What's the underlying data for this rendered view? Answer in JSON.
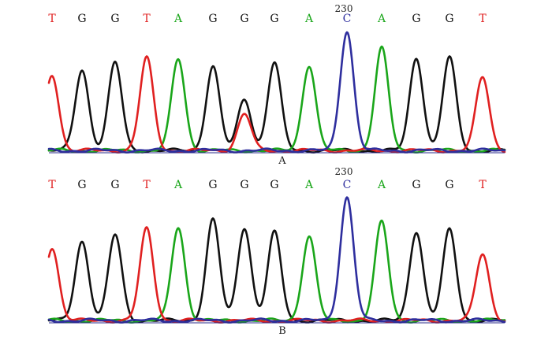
{
  "chart_data": [
    {
      "type": "line",
      "panel_label": "A",
      "position_label": "230",
      "bases": [
        "T",
        "G",
        "G",
        "T",
        "A",
        "G",
        "G",
        "G",
        "A",
        "C",
        "A",
        "G",
        "G",
        "T"
      ],
      "base_colors": {
        "A": "#1aa61a",
        "C": "#2e2e9e",
        "G": "#111111",
        "T": "#e02020"
      },
      "peak_heights": [
        0.62,
        0.66,
        0.72,
        0.76,
        0.75,
        0.69,
        0.42,
        0.72,
        0.7,
        0.98,
        0.84,
        0.76,
        0.76,
        0.6
      ],
      "secondary_peaks": [
        {
          "index": 6,
          "base": "T",
          "height": 0.3
        }
      ],
      "position_label_index": 9
    },
    {
      "type": "line",
      "panel_label": "B",
      "position_label": "230",
      "bases": [
        "T",
        "G",
        "G",
        "T",
        "A",
        "G",
        "G",
        "G",
        "A",
        "C",
        "A",
        "G",
        "G",
        "T"
      ],
      "base_colors": {
        "A": "#1aa61a",
        "C": "#2e2e9e",
        "G": "#111111",
        "T": "#e02020"
      },
      "peak_heights": [
        0.58,
        0.63,
        0.68,
        0.73,
        0.74,
        0.8,
        0.74,
        0.7,
        0.67,
        0.98,
        0.78,
        0.71,
        0.72,
        0.53
      ],
      "secondary_peaks": [],
      "position_label_index": 9
    }
  ]
}
